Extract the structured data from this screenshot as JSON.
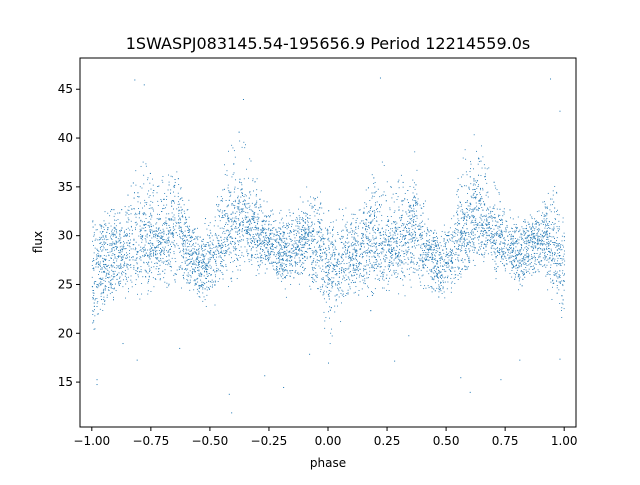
{
  "chart_data": {
    "type": "scatter",
    "title": "1SWASPJ083145.54-195656.9 Period 12214559.0s",
    "xlabel": "phase",
    "ylabel": "flux",
    "xlim": [
      -1.05,
      1.05
    ],
    "ylim": [
      10.4,
      48.2
    ],
    "x_ticks": [
      -1.0,
      -0.75,
      -0.5,
      -0.25,
      0.0,
      0.25,
      0.5,
      0.75,
      1.0
    ],
    "x_tick_labels": [
      "−1.00",
      "−0.75",
      "−0.50",
      "−0.25",
      "0.00",
      "0.25",
      "0.50",
      "0.75",
      "1.00"
    ],
    "y_ticks": [
      15,
      20,
      25,
      30,
      35,
      40,
      45
    ],
    "y_tick_labels": [
      "15",
      "20",
      "25",
      "30",
      "35",
      "40",
      "45"
    ],
    "grid": false,
    "legend": "none",
    "point_color": "#1f77b4",
    "envelope_description": "Dense cloud of photometry points folded twice over phase -1 to 1; per-phase flux band (lower, center, upper)",
    "envelope": [
      {
        "phase": -1.0,
        "low": 21,
        "mid": 26,
        "high": 32
      },
      {
        "phase": -0.97,
        "low": 22,
        "mid": 27,
        "high": 31
      },
      {
        "phase": -0.92,
        "low": 24,
        "mid": 28,
        "high": 32
      },
      {
        "phase": -0.87,
        "low": 25,
        "mid": 28,
        "high": 33
      },
      {
        "phase": -0.82,
        "low": 25,
        "mid": 30,
        "high": 37
      },
      {
        "phase": -0.77,
        "low": 25,
        "mid": 29,
        "high": 38
      },
      {
        "phase": -0.73,
        "low": 26,
        "mid": 29,
        "high": 35
      },
      {
        "phase": -0.68,
        "low": 26,
        "mid": 30,
        "high": 37
      },
      {
        "phase": -0.63,
        "low": 26,
        "mid": 31,
        "high": 36
      },
      {
        "phase": -0.58,
        "low": 24,
        "mid": 28,
        "high": 31
      },
      {
        "phase": -0.53,
        "low": 24,
        "mid": 27,
        "high": 30
      },
      {
        "phase": -0.48,
        "low": 25,
        "mid": 28,
        "high": 33
      },
      {
        "phase": -0.44,
        "low": 26,
        "mid": 30,
        "high": 38
      },
      {
        "phase": -0.4,
        "low": 27,
        "mid": 31,
        "high": 40
      },
      {
        "phase": -0.37,
        "low": 28,
        "mid": 32,
        "high": 41
      },
      {
        "phase": -0.33,
        "low": 28,
        "mid": 31,
        "high": 38
      },
      {
        "phase": -0.29,
        "low": 27,
        "mid": 30,
        "high": 35
      },
      {
        "phase": -0.24,
        "low": 27,
        "mid": 29,
        "high": 33
      },
      {
        "phase": -0.19,
        "low": 25,
        "mid": 28,
        "high": 32
      },
      {
        "phase": -0.14,
        "low": 26,
        "mid": 29,
        "high": 32
      },
      {
        "phase": -0.09,
        "low": 26,
        "mid": 30,
        "high": 33
      },
      {
        "phase": -0.04,
        "low": 25,
        "mid": 29,
        "high": 35
      },
      {
        "phase": 0.0,
        "low": 21,
        "mid": 26,
        "high": 32
      },
      {
        "phase": 0.03,
        "low": 22,
        "mid": 27,
        "high": 31
      },
      {
        "phase": 0.08,
        "low": 24,
        "mid": 28,
        "high": 32
      },
      {
        "phase": 0.13,
        "low": 25,
        "mid": 28,
        "high": 33
      },
      {
        "phase": 0.18,
        "low": 25,
        "mid": 30,
        "high": 37
      },
      {
        "phase": 0.23,
        "low": 25,
        "mid": 29,
        "high": 38
      },
      {
        "phase": 0.27,
        "low": 26,
        "mid": 29,
        "high": 35
      },
      {
        "phase": 0.32,
        "low": 26,
        "mid": 30,
        "high": 37
      },
      {
        "phase": 0.37,
        "low": 26,
        "mid": 31,
        "high": 36
      },
      {
        "phase": 0.42,
        "low": 24,
        "mid": 28,
        "high": 31
      },
      {
        "phase": 0.47,
        "low": 24,
        "mid": 27,
        "high": 30
      },
      {
        "phase": 0.52,
        "low": 25,
        "mid": 28,
        "high": 33
      },
      {
        "phase": 0.56,
        "low": 26,
        "mid": 30,
        "high": 38
      },
      {
        "phase": 0.6,
        "low": 27,
        "mid": 31,
        "high": 40
      },
      {
        "phase": 0.63,
        "low": 28,
        "mid": 32,
        "high": 41
      },
      {
        "phase": 0.67,
        "low": 28,
        "mid": 31,
        "high": 38
      },
      {
        "phase": 0.71,
        "low": 27,
        "mid": 30,
        "high": 35
      },
      {
        "phase": 0.76,
        "low": 27,
        "mid": 29,
        "high": 33
      },
      {
        "phase": 0.81,
        "low": 25,
        "mid": 28,
        "high": 32
      },
      {
        "phase": 0.86,
        "low": 26,
        "mid": 29,
        "high": 32
      },
      {
        "phase": 0.91,
        "low": 26,
        "mid": 30,
        "high": 33
      },
      {
        "phase": 0.96,
        "low": 25,
        "mid": 29,
        "high": 35
      },
      {
        "phase": 1.0,
        "low": 21,
        "mid": 26,
        "high": 32
      }
    ],
    "outliers": [
      {
        "x": -0.98,
        "y": 14.8
      },
      {
        "x": -0.98,
        "y": 15.3
      },
      {
        "x": -0.81,
        "y": 17.3
      },
      {
        "x": -0.82,
        "y": 46.0
      },
      {
        "x": -0.78,
        "y": 45.5
      },
      {
        "x": -0.63,
        "y": 18.5
      },
      {
        "x": -0.42,
        "y": 13.8
      },
      {
        "x": -0.41,
        "y": 11.9
      },
      {
        "x": -0.27,
        "y": 15.7
      },
      {
        "x": -0.19,
        "y": 14.5
      },
      {
        "x": -0.08,
        "y": 17.9
      },
      {
        "x": 0.0,
        "y": 17.0
      },
      {
        "x": 0.22,
        "y": 46.2
      },
      {
        "x": 0.28,
        "y": 17.2
      },
      {
        "x": 0.56,
        "y": 15.5
      },
      {
        "x": 0.6,
        "y": 14.0
      },
      {
        "x": 0.73,
        "y": 15.3
      },
      {
        "x": 0.81,
        "y": 17.3
      },
      {
        "x": 0.94,
        "y": 46.1
      },
      {
        "x": 0.98,
        "y": 42.8
      },
      {
        "x": 0.98,
        "y": 17.4
      },
      {
        "x": -0.87,
        "y": 19.0
      },
      {
        "x": 0.34,
        "y": 19.8
      },
      {
        "x": -0.36,
        "y": 44.0
      }
    ]
  }
}
